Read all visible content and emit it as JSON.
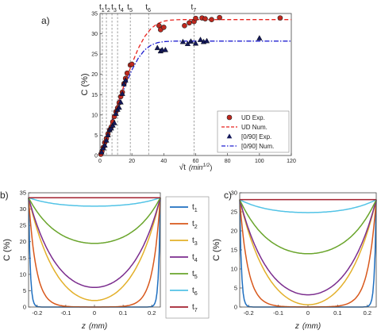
{
  "chart_data": [
    {
      "panel_label": "a)",
      "type": "scatter",
      "xlabel": "√t (min^1/2)",
      "xlabel_main": "√t",
      "xlabel_unit": "(min",
      "xlabel_exp": "1/2",
      "xlabel_close": ")",
      "ylabel": "C (%)",
      "xlim": [
        0,
        120
      ],
      "ylim": [
        0,
        35
      ],
      "xticks": [
        0,
        20,
        40,
        60,
        80,
        100,
        120
      ],
      "yticks": [
        0,
        5,
        10,
        15,
        20,
        25,
        30,
        35
      ],
      "grid": false,
      "legend_position": "lower-right",
      "time_markers": [
        {
          "label": "t",
          "sub": "1",
          "x": 1.5
        },
        {
          "label": "t",
          "sub": "2",
          "x": 4
        },
        {
          "label": "t",
          "sub": "3",
          "x": 7.5
        },
        {
          "label": "t",
          "sub": "4",
          "x": 11
        },
        {
          "label": "t",
          "sub": "5",
          "x": 19
        },
        {
          "label": "t",
          "sub": "6",
          "x": 30.5
        },
        {
          "label": "t",
          "sub": "7",
          "x": 59
        }
      ],
      "series": [
        {
          "name": "UD Exp.",
          "kind": "markers",
          "marker": "circle",
          "color": "#c0281e",
          "x": [
            0.5,
            1.2,
            2,
            3,
            4,
            5,
            6,
            7,
            8,
            9,
            10,
            11,
            12,
            13,
            14,
            15,
            16,
            17,
            19,
            20,
            37,
            38,
            40,
            53,
            56,
            59,
            60,
            64,
            66,
            70,
            75,
            113
          ],
          "y": [
            0.3,
            1.0,
            2.0,
            3.2,
            4.2,
            5.3,
            6.3,
            7.0,
            8.3,
            9.6,
            10.8,
            11.7,
            13.0,
            14.5,
            15.6,
            17.7,
            19.0,
            20.3,
            22.3,
            22.5,
            32.0,
            31.0,
            31.6,
            32.0,
            32.7,
            33.0,
            33.8,
            33.9,
            33.7,
            33.5,
            34.0,
            33.9
          ]
        },
        {
          "name": "UD Num.",
          "kind": "line",
          "style": "dashed",
          "color": "#e8231e",
          "plateau": 33.5,
          "x": [
            0,
            4,
            8,
            12,
            16,
            20,
            24,
            28,
            32,
            36,
            40,
            44,
            48,
            52,
            60,
            80,
            100,
            120
          ],
          "y": [
            0,
            4.6,
            9.2,
            13.8,
            18.3,
            22.6,
            26.4,
            29.3,
            31.3,
            32.5,
            33.1,
            33.35,
            33.45,
            33.5,
            33.5,
            33.5,
            33.5,
            33.5
          ]
        },
        {
          "name": "[0/90] Exp.",
          "kind": "markers",
          "marker": "triangle",
          "color": "#14195a",
          "x": [
            1,
            2,
            3,
            4,
            5,
            6,
            7,
            8,
            9,
            10,
            11,
            12,
            13,
            14,
            15,
            16,
            36,
            38,
            39,
            41,
            52,
            55,
            57,
            60,
            63,
            65,
            67,
            100
          ],
          "y": [
            0.8,
            1.8,
            2.5,
            3.7,
            5.0,
            6.3,
            6.7,
            7.4,
            8.0,
            10.3,
            11.3,
            11.8,
            13.1,
            15.2,
            17.6,
            18.5,
            26.5,
            25.7,
            26.0,
            26.0,
            28.0,
            27.5,
            28.1,
            27.6,
            28.5,
            28.0,
            28.2,
            28.9
          ]
        },
        {
          "name": "[0/90] Num.",
          "kind": "line",
          "style": "dashdot",
          "color": "#2020d0",
          "plateau": 28.2,
          "x": [
            0,
            4,
            8,
            12,
            16,
            20,
            24,
            28,
            32,
            36,
            40,
            44,
            48,
            52,
            60,
            80,
            100,
            120
          ],
          "y": [
            0,
            4.4,
            8.8,
            13.2,
            17.4,
            21.1,
            24.0,
            26.0,
            27.2,
            27.8,
            28.05,
            28.15,
            28.2,
            28.2,
            28.2,
            28.2,
            28.2,
            28.2
          ]
        }
      ]
    },
    {
      "panel_label": "b)",
      "type": "line",
      "xlabel": "z (mm)",
      "xlabel_main": "z",
      "xlabel_unit": "(mm)",
      "ylabel": "C (%)",
      "xlim": [
        -0.23,
        0.23
      ],
      "ylim": [
        0,
        35
      ],
      "xticks": [
        -0.2,
        -0.1,
        0,
        0.1,
        0.2
      ],
      "xtick_labels": [
        "-0.2",
        "-0.1",
        "0",
        "0.1",
        "0.2"
      ],
      "yticks": [
        0,
        5,
        10,
        15,
        20,
        25,
        30,
        35
      ],
      "grid": false,
      "legend_position": "right-outside",
      "surface_value": 33.5,
      "series": [
        {
          "name": "t1",
          "label": "t",
          "sub": "1",
          "color": "#1f6fc0",
          "center": 0.0,
          "steep": 55
        },
        {
          "name": "t2",
          "label": "t",
          "sub": "2",
          "color": "#d8581c",
          "center": 0.0,
          "steep": 32
        },
        {
          "name": "t3",
          "label": "t",
          "sub": "3",
          "color": "#e3b02a",
          "center": 2.0,
          "steep": 0
        },
        {
          "name": "t4",
          "label": "t",
          "sub": "4",
          "color": "#7b2d8e",
          "center": 6.0,
          "steep": 0
        },
        {
          "name": "t5",
          "label": "t",
          "sub": "5",
          "color": "#6aa52c",
          "center": 19.5,
          "steep": 0
        },
        {
          "name": "t6",
          "label": "t",
          "sub": "6",
          "color": "#52c3e6",
          "center": 30.9,
          "steep": 0
        },
        {
          "name": "t7",
          "label": "t",
          "sub": "7",
          "color": "#a3202f",
          "center": 33.5,
          "steep": 0
        }
      ]
    },
    {
      "panel_label": "c)",
      "type": "line",
      "xlabel": "z (mm)",
      "xlabel_main": "z",
      "xlabel_unit": "(mm)",
      "ylabel": "C (%)",
      "xlim": [
        -0.23,
        0.23
      ],
      "ylim": [
        0,
        30
      ],
      "xticks": [
        -0.2,
        -0.1,
        0,
        0.1,
        0.2
      ],
      "xtick_labels": [
        "-0.2",
        "-0.1",
        "0",
        "0.1",
        "0.2"
      ],
      "yticks": [
        0,
        5,
        10,
        15,
        20,
        25,
        30
      ],
      "grid": false,
      "surface_value": 28.2,
      "series": [
        {
          "name": "t1",
          "color": "#1f6fc0",
          "center": 0.0,
          "steep": 55
        },
        {
          "name": "t2",
          "color": "#d8581c",
          "center": 0.0,
          "steep": 30
        },
        {
          "name": "t3",
          "color": "#e3b02a",
          "center": 0.6,
          "steep": 0
        },
        {
          "name": "t4",
          "color": "#7b2d8e",
          "center": 3.2,
          "steep": 0
        },
        {
          "name": "t5",
          "color": "#6aa52c",
          "center": 14.0,
          "steep": 0
        },
        {
          "name": "t6",
          "color": "#52c3e6",
          "center": 24.8,
          "steep": 0
        },
        {
          "name": "t7",
          "color": "#a3202f",
          "center": 28.2,
          "steep": 0
        }
      ]
    }
  ]
}
